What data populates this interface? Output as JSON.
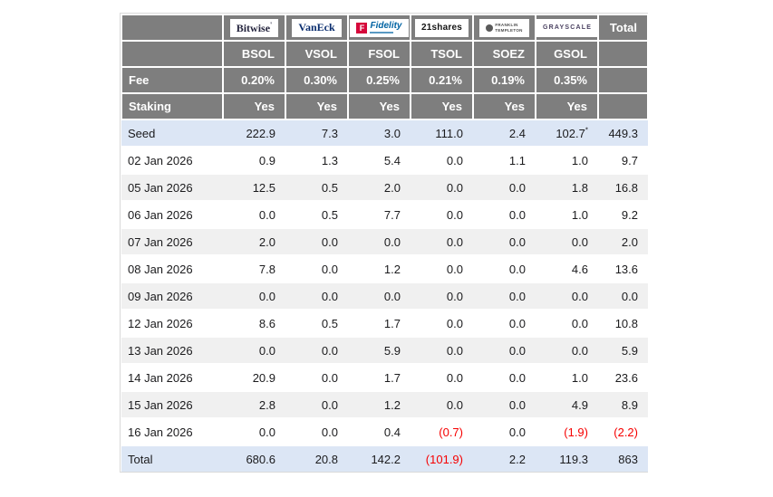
{
  "colors": {
    "header_bg": "#7e7e7e",
    "header_text": "#ffffff",
    "highlight_row_bg": "#dce6f5",
    "stripe_row_bg": "#f0f0f0",
    "negative_text": "#f60000",
    "body_text": "#1b1b1d",
    "fidelity_red": "#d6083b",
    "fidelity_blue": "#0063a3",
    "vaneck_blue": "#0a2d6e",
    "bitwise_dark": "#25253e",
    "grayscale_purple": "#4b4261"
  },
  "chart_data": {
    "type": "table",
    "labels": {
      "fee": "Fee",
      "staking": "Staking",
      "total_column": "Total"
    },
    "issuers": [
      {
        "brand": "bitwise",
        "name": "Bitwise",
        "ticker": "BSOL",
        "fee": "0.20%",
        "staking": "Yes"
      },
      {
        "brand": "vaneck",
        "name": "VanEck",
        "ticker": "VSOL",
        "fee": "0.30%",
        "staking": "Yes"
      },
      {
        "brand": "fidelity",
        "name": "Fidelity",
        "ticker": "FSOL",
        "fee": "0.25%",
        "staking": "Yes"
      },
      {
        "brand": "21shares",
        "name": "21shares",
        "ticker": "TSOL",
        "fee": "0.21%",
        "staking": "Yes"
      },
      {
        "brand": "franklin-templeton",
        "name": "FRANKLIN TEMPLETON",
        "ticker": "SOEZ",
        "fee": "0.19%",
        "staking": "Yes"
      },
      {
        "brand": "grayscale",
        "name": "GRAYSCALE",
        "ticker": "GSOL",
        "fee": "0.35%",
        "staking": "Yes"
      }
    ],
    "rows": [
      {
        "label": "Seed",
        "values": [
          "222.9",
          "7.3",
          "3.0",
          "111.0",
          "2.4",
          "102.7*"
        ],
        "total": "449.3",
        "highlight": true
      },
      {
        "label": "02 Jan 2026",
        "values": [
          "0.9",
          "1.3",
          "5.4",
          "0.0",
          "1.1",
          "1.0"
        ],
        "total": "9.7"
      },
      {
        "label": "05 Jan 2026",
        "values": [
          "12.5",
          "0.5",
          "2.0",
          "0.0",
          "0.0",
          "1.8"
        ],
        "total": "16.8"
      },
      {
        "label": "06 Jan 2026",
        "values": [
          "0.0",
          "0.5",
          "7.7",
          "0.0",
          "0.0",
          "1.0"
        ],
        "total": "9.2"
      },
      {
        "label": "07 Jan 2026",
        "values": [
          "2.0",
          "0.0",
          "0.0",
          "0.0",
          "0.0",
          "0.0"
        ],
        "total": "2.0"
      },
      {
        "label": "08 Jan 2026",
        "values": [
          "7.8",
          "0.0",
          "1.2",
          "0.0",
          "0.0",
          "4.6"
        ],
        "total": "13.6"
      },
      {
        "label": "09 Jan 2026",
        "values": [
          "0.0",
          "0.0",
          "0.0",
          "0.0",
          "0.0",
          "0.0"
        ],
        "total": "0.0"
      },
      {
        "label": "12 Jan 2026",
        "values": [
          "8.6",
          "0.5",
          "1.7",
          "0.0",
          "0.0",
          "0.0"
        ],
        "total": "10.8"
      },
      {
        "label": "13 Jan 2026",
        "values": [
          "0.0",
          "0.0",
          "5.9",
          "0.0",
          "0.0",
          "0.0"
        ],
        "total": "5.9"
      },
      {
        "label": "14 Jan 2026",
        "values": [
          "20.9",
          "0.0",
          "1.7",
          "0.0",
          "0.0",
          "1.0"
        ],
        "total": "23.6"
      },
      {
        "label": "15 Jan 2026",
        "values": [
          "2.8",
          "0.0",
          "1.2",
          "0.0",
          "0.0",
          "4.9"
        ],
        "total": "8.9"
      },
      {
        "label": "16 Jan 2026",
        "values": [
          "0.0",
          "0.0",
          "0.4",
          "(0.7)",
          "0.0",
          "(1.9)"
        ],
        "total": "(2.2)"
      },
      {
        "label": "Total",
        "values": [
          "680.6",
          "20.8",
          "142.2",
          "(101.9)",
          "2.2",
          "119.3"
        ],
        "total": "863",
        "highlight": true
      }
    ]
  }
}
